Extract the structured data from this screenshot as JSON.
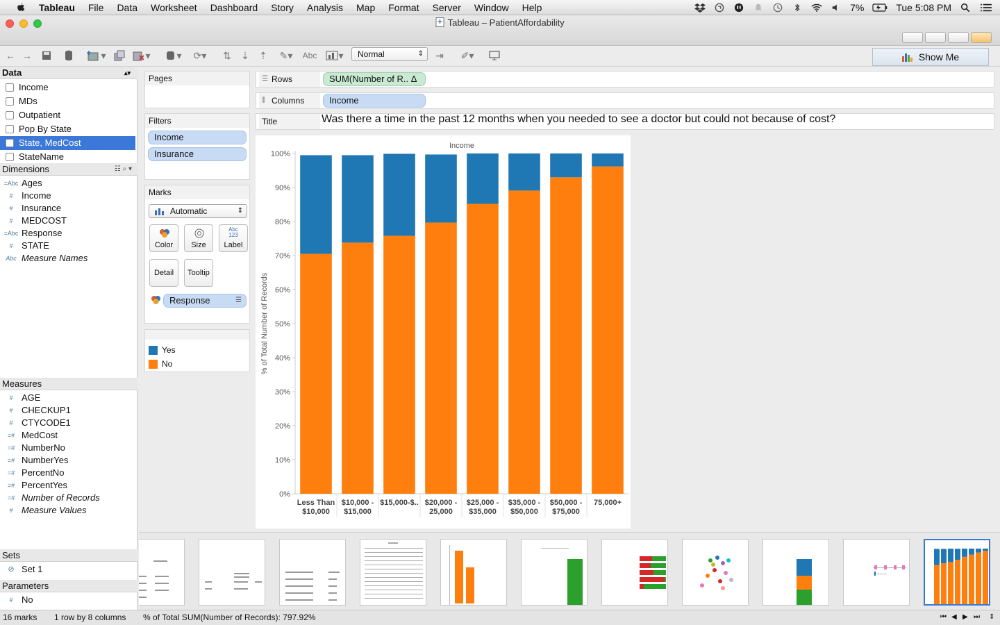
{
  "menubar": {
    "app": "Tableau",
    "menus": [
      "File",
      "Data",
      "Worksheet",
      "Dashboard",
      "Story",
      "Analysis",
      "Map",
      "Format",
      "Server",
      "Window",
      "Help"
    ],
    "battery": "7%",
    "clock": "Tue 5:08 PM"
  },
  "window": {
    "title": "Tableau – PatientAffordability"
  },
  "toolbar": {
    "view_mode": "Normal",
    "show_me": "Show Me"
  },
  "data_pane": {
    "header": "Data",
    "data_sources": [
      {
        "label": "Income"
      },
      {
        "label": "MDs"
      },
      {
        "label": "Outpatient"
      },
      {
        "label": "Pop By State"
      },
      {
        "label": "State, MedCost",
        "selected": true
      },
      {
        "label": "StateName"
      }
    ],
    "dimensions_header": "Dimensions",
    "dimensions": [
      {
        "icon": "=Abc",
        "label": "Ages"
      },
      {
        "icon": "#",
        "label": "Income"
      },
      {
        "icon": "#",
        "label": "Insurance"
      },
      {
        "icon": "#",
        "label": "MEDCOST"
      },
      {
        "icon": "=Abc",
        "label": "Response"
      },
      {
        "icon": "#",
        "label": "STATE"
      },
      {
        "icon": "Abc",
        "label": "Measure Names",
        "italic": true
      }
    ],
    "measures_header": "Measures",
    "measures": [
      {
        "icon": "#",
        "label": "AGE"
      },
      {
        "icon": "#",
        "label": "CHECKUP1"
      },
      {
        "icon": "#",
        "label": "CTYCODE1"
      },
      {
        "icon": "=#",
        "label": "MedCost"
      },
      {
        "icon": "=#",
        "label": "NumberNo"
      },
      {
        "icon": "=#",
        "label": "NumberYes"
      },
      {
        "icon": "=#",
        "label": "PercentNo"
      },
      {
        "icon": "=#",
        "label": "PercentYes"
      },
      {
        "icon": "=#",
        "label": "Number of Records",
        "italic": true
      },
      {
        "icon": "#",
        "label": "Measure Values",
        "italic": true
      }
    ],
    "sets_header": "Sets",
    "sets": [
      {
        "label": "Set 1"
      }
    ],
    "parameters_header": "Parameters",
    "parameters": [
      {
        "icon": "#",
        "label": "No"
      }
    ]
  },
  "pages": {
    "header": "Pages"
  },
  "filters": {
    "header": "Filters",
    "pills": [
      "Income",
      "Insurance"
    ]
  },
  "marks": {
    "header": "Marks",
    "type": "Automatic",
    "buttons": {
      "color": "Color",
      "size": "Size",
      "label": "Label",
      "label_icon_top": "Abc",
      "label_icon_bottom": "123",
      "detail": "Detail",
      "tooltip": "Tooltip"
    },
    "color_pill": "Response"
  },
  "legend": [
    {
      "label": "Yes",
      "color": "#1f77b4"
    },
    {
      "label": "No",
      "color": "#ff7f0e"
    }
  ],
  "shelves": {
    "rows_label": "Rows",
    "rows_pill": "SUM(Number of R.. Δ",
    "columns_label": "Columns",
    "columns_pill": "Income",
    "title_label": "Title",
    "title_text": "Was there a time in the past 12 months when you needed to see a doctor but could not because of cost?"
  },
  "chart_data": {
    "type": "bar",
    "stacked": true,
    "title": "Income",
    "ylabel": "% of Total Number of Records",
    "ylim": [
      0,
      100
    ],
    "yticks": [
      "0%",
      "10%",
      "20%",
      "30%",
      "40%",
      "50%",
      "60%",
      "70%",
      "80%",
      "90%",
      "100%"
    ],
    "categories": [
      [
        "Less Than",
        "$10,000"
      ],
      [
        "$10,000 -",
        "$15,000"
      ],
      [
        "$15,000-$.."
      ],
      [
        "$20,000 -",
        "25,000"
      ],
      [
        "$25,000 -",
        "$35,000"
      ],
      [
        "$35,000 -",
        "$50,000"
      ],
      [
        "$50,000 -",
        "$75,000"
      ],
      [
        "75,000+"
      ]
    ],
    "series": [
      {
        "name": "No",
        "color": "#ff7f0e",
        "values": [
          70.5,
          73.8,
          75.8,
          79.7,
          85.2,
          89.1,
          93.0,
          96.2
        ]
      },
      {
        "name": "Yes",
        "color": "#1f77b4",
        "values": [
          29.0,
          25.7,
          24.1,
          20.0,
          14.8,
          10.9,
          7.0,
          3.8
        ]
      }
    ]
  },
  "filmstrip": {
    "thumbnail_count": 11,
    "active_index": 10
  },
  "status": {
    "marks": "16 marks",
    "dims": "1 row by 8 columns",
    "summary": "% of Total SUM(Number of Records): 797.92%"
  }
}
